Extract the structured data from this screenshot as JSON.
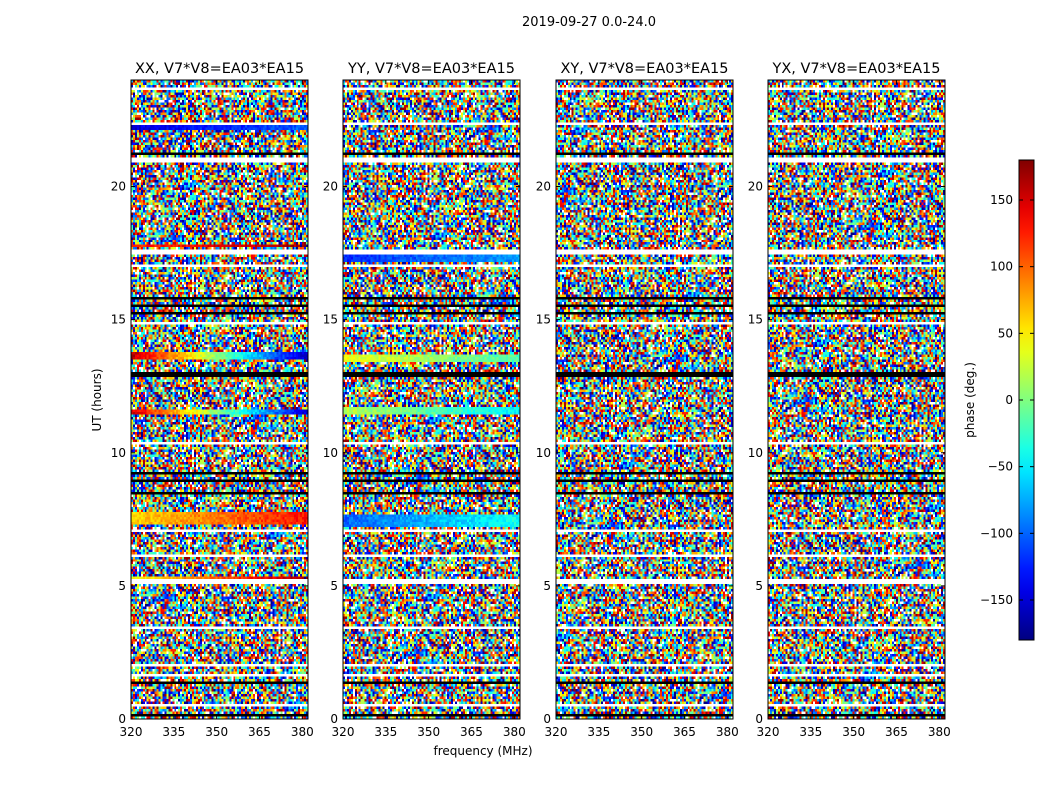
{
  "figure": {
    "suptitle": "2019-09-27 0.0-24.0"
  },
  "chart_data": {
    "type": "heatmap",
    "panels": [
      {
        "title": "XX, V7*V8=EA03*EA15"
      },
      {
        "title": "YY, V7*V8=EA03*EA15"
      },
      {
        "title": "XY, V7*V8=EA03*EA15"
      },
      {
        "title": "YX, V7*V8=EA03*EA15"
      }
    ],
    "xlabel": "frequency (MHz)",
    "ylabel": "UT (hours)",
    "xlim": [
      320,
      382
    ],
    "ylim": [
      0,
      24
    ],
    "xticks": [
      320,
      335,
      350,
      365,
      380
    ],
    "yticks": [
      0,
      5,
      10,
      15,
      20
    ],
    "colorbar": {
      "label": "phase (deg.)",
      "range": [
        -180,
        180
      ],
      "ticks": [
        -150,
        -100,
        -50,
        0,
        50,
        100,
        150
      ],
      "colormap": "jet"
    },
    "blank_bands_ut": [
      [
        0.45,
        0.6
      ],
      [
        1.55,
        1.7
      ],
      [
        2.0,
        2.1
      ],
      [
        3.4,
        3.5
      ],
      [
        5.1,
        5.25
      ],
      [
        6.05,
        6.15
      ],
      [
        7.05,
        7.15
      ],
      [
        10.3,
        10.45
      ],
      [
        14.8,
        14.95
      ],
      [
        16.95,
        17.1
      ],
      [
        17.4,
        17.6
      ],
      [
        20.9,
        21.05
      ],
      [
        22.3,
        22.45
      ],
      [
        23.6,
        23.75
      ]
    ],
    "flagged_bands_ut": [
      [
        0.1,
        0.2
      ],
      [
        1.35,
        1.45
      ],
      [
        8.4,
        8.5
      ],
      [
        8.9,
        9.0
      ],
      [
        9.2,
        9.3
      ],
      [
        12.8,
        13.0
      ],
      [
        15.2,
        15.3
      ],
      [
        15.5,
        15.6
      ],
      [
        15.75,
        15.85
      ],
      [
        21.2,
        21.3
      ]
    ],
    "coherent_bands": [
      {
        "panel": 0,
        "ut": [
          5.15,
          5.35
        ],
        "phase": [
          40,
          170
        ]
      },
      {
        "panel": 0,
        "ut": [
          7.3,
          7.8
        ],
        "phase": [
          60,
          130
        ]
      },
      {
        "panel": 0,
        "ut": [
          11.4,
          11.6
        ],
        "phase": [
          150,
          -150
        ]
      },
      {
        "panel": 0,
        "ut": [
          13.5,
          13.75
        ],
        "phase": [
          160,
          -160
        ]
      },
      {
        "panel": 0,
        "ut": [
          22.15,
          22.3
        ],
        "phase": [
          -150,
          -100
        ]
      },
      {
        "panel": 0,
        "ut": [
          17.7,
          17.85
        ],
        "phase": [
          120,
          170
        ]
      },
      {
        "panel": 1,
        "ut": [
          5.05,
          5.25
        ],
        "phase": [
          -100,
          -80
        ]
      },
      {
        "panel": 1,
        "ut": [
          7.2,
          7.7
        ],
        "phase": [
          -100,
          -40
        ]
      },
      {
        "panel": 1,
        "ut": [
          11.4,
          11.7
        ],
        "phase": [
          20,
          -50
        ]
      },
      {
        "panel": 1,
        "ut": [
          13.4,
          13.7
        ],
        "phase": [
          40,
          -20
        ]
      },
      {
        "panel": 1,
        "ut": [
          17.2,
          17.4
        ],
        "phase": [
          -120,
          -80
        ]
      }
    ]
  }
}
